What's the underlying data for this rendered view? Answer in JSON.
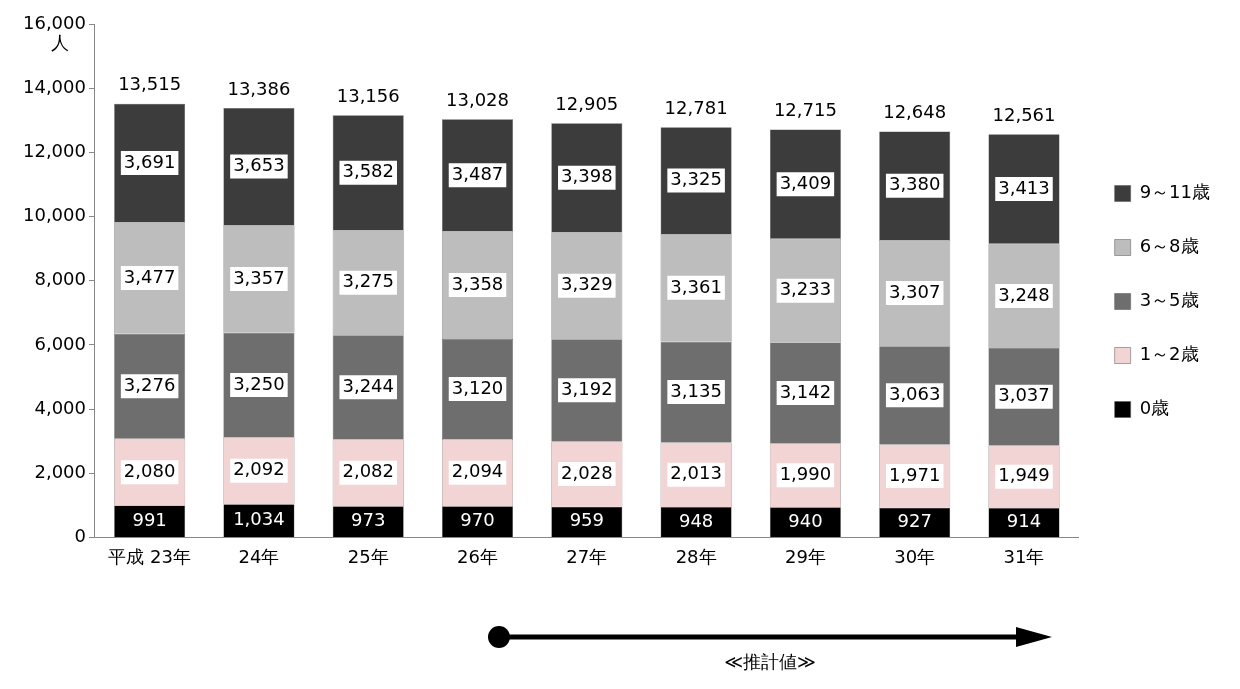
{
  "chart_data": {
    "type": "bar",
    "stacked": true,
    "ylabel": "人",
    "categories": [
      "平成 23年",
      "24年",
      "25年",
      "26年",
      "27年",
      "28年",
      "29年",
      "30年",
      "31年"
    ],
    "series": [
      {
        "name": "0歳",
        "color": "#000000",
        "values": [
          991,
          1034,
          973,
          970,
          959,
          948,
          940,
          927,
          914
        ],
        "value_labels": [
          "991",
          "1,034",
          "973",
          "970",
          "959",
          "948",
          "940",
          "927",
          "914"
        ]
      },
      {
        "name": "1～2歳",
        "color": "#f2d4d4",
        "values": [
          2080,
          2092,
          2082,
          2094,
          2028,
          2013,
          1990,
          1971,
          1949
        ],
        "value_labels": [
          "2,080",
          "2,092",
          "2,082",
          "2,094",
          "2,028",
          "2,013",
          "1,990",
          "1,971",
          "1,949"
        ]
      },
      {
        "name": "3～5歳",
        "color": "#6e6e6e",
        "values": [
          3276,
          3250,
          3244,
          3120,
          3192,
          3135,
          3142,
          3063,
          3037
        ],
        "value_labels": [
          "3,276",
          "3,250",
          "3,244",
          "3,120",
          "3,192",
          "3,135",
          "3,142",
          "3,063",
          "3,037"
        ]
      },
      {
        "name": "6～8歳",
        "color": "#bdbdbd",
        "values": [
          3477,
          3357,
          3275,
          3358,
          3329,
          3361,
          3233,
          3307,
          3248
        ],
        "value_labels": [
          "3,477",
          "3,357",
          "3,275",
          "3,358",
          "3,329",
          "3,361",
          "3,233",
          "3,307",
          "3,248"
        ]
      },
      {
        "name": "9～11歳",
        "color": "#3c3c3c",
        "values": [
          3691,
          3653,
          3582,
          3487,
          3398,
          3325,
          3409,
          3380,
          3413
        ],
        "value_labels": [
          "3,691",
          "3,653",
          "3,582",
          "3,487",
          "3,398",
          "3,325",
          "3,409",
          "3,380",
          "3,413"
        ]
      }
    ],
    "totals": [
      "13,515",
      "13,386",
      "13,156",
      "13,028",
      "12,905",
      "12,781",
      "12,715",
      "12,648",
      "12,561"
    ],
    "ylim": [
      0,
      16000
    ],
    "yticks": [
      {
        "value": 0,
        "label": "0"
      },
      {
        "value": 2000,
        "label": "2,000"
      },
      {
        "value": 4000,
        "label": "4,000"
      },
      {
        "value": 6000,
        "label": "6,000"
      },
      {
        "value": 8000,
        "label": "8,000"
      },
      {
        "value": 10000,
        "label": "10,000"
      },
      {
        "value": 12000,
        "label": "12,000"
      },
      {
        "value": 14000,
        "label": "14,000"
      },
      {
        "value": 16000,
        "label": "16,000"
      }
    ],
    "grid": false,
    "legend": "right",
    "annotations": [
      "≪推計値≫"
    ]
  }
}
